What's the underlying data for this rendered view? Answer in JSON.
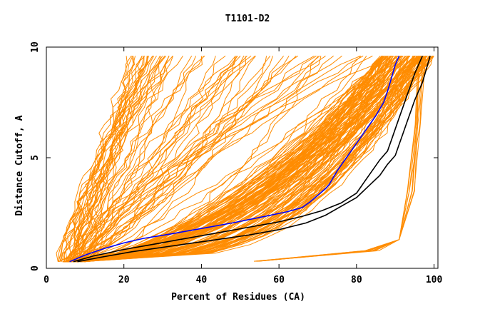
{
  "chart_data": {
    "type": "line",
    "title": "T1101-D2",
    "xlabel": "Percent of Residues (CA)",
    "ylabel": "Distance Cutoff, A",
    "xlim": [
      0,
      101
    ],
    "ylim": [
      0,
      10
    ],
    "x_ticks": [
      0,
      20,
      40,
      60,
      80,
      100
    ],
    "y_ticks": [
      0,
      5,
      10
    ],
    "grid": false,
    "legend": "none",
    "colors": {
      "models": "#ff8c00",
      "highlight": "#0000ff",
      "reference": "#000000",
      "axes": "#000000"
    },
    "highlighted_series": [
      {
        "color": "#0000ff",
        "points": [
          [
            6,
            0.3
          ],
          [
            10,
            0.6
          ],
          [
            15,
            0.9
          ],
          [
            20,
            1.15
          ],
          [
            25,
            1.35
          ],
          [
            32,
            1.55
          ],
          [
            40,
            1.8
          ],
          [
            48,
            2.05
          ],
          [
            55,
            2.3
          ],
          [
            62,
            2.55
          ],
          [
            66,
            2.75
          ],
          [
            68,
            3.0
          ],
          [
            70,
            3.3
          ],
          [
            72,
            3.6
          ],
          [
            73,
            3.8
          ],
          [
            74,
            4.1
          ],
          [
            75,
            4.4
          ],
          [
            77,
            4.9
          ],
          [
            79,
            5.4
          ],
          [
            81,
            5.9
          ],
          [
            83,
            6.4
          ],
          [
            85,
            6.9
          ],
          [
            87,
            7.5
          ],
          [
            88,
            8.0
          ],
          [
            89,
            8.6
          ],
          [
            90,
            9.2
          ],
          [
            91,
            9.6
          ]
        ]
      },
      {
        "color": "#000000",
        "points": [
          [
            7,
            0.3
          ],
          [
            12,
            0.55
          ],
          [
            20,
            0.85
          ],
          [
            28,
            1.1
          ],
          [
            36,
            1.35
          ],
          [
            44,
            1.6
          ],
          [
            52,
            1.85
          ],
          [
            60,
            2.1
          ],
          [
            66,
            2.35
          ],
          [
            71,
            2.6
          ],
          [
            76,
            2.95
          ],
          [
            80,
            3.4
          ],
          [
            82,
            3.9
          ],
          [
            84,
            4.4
          ],
          [
            86,
            4.9
          ],
          [
            88,
            5.3
          ],
          [
            89,
            5.8
          ],
          [
            90,
            6.3
          ],
          [
            91,
            6.8
          ],
          [
            92,
            7.3
          ],
          [
            93,
            7.8
          ],
          [
            94,
            8.3
          ],
          [
            95,
            8.8
          ],
          [
            96,
            9.2
          ],
          [
            97,
            9.6
          ]
        ]
      },
      {
        "color": "#000000",
        "points": [
          [
            8,
            0.3
          ],
          [
            14,
            0.5
          ],
          [
            22,
            0.75
          ],
          [
            32,
            1.0
          ],
          [
            42,
            1.25
          ],
          [
            52,
            1.5
          ],
          [
            60,
            1.75
          ],
          [
            67,
            2.05
          ],
          [
            72,
            2.4
          ],
          [
            76,
            2.8
          ],
          [
            80,
            3.2
          ],
          [
            83,
            3.7
          ],
          [
            86,
            4.2
          ],
          [
            88,
            4.7
          ],
          [
            90,
            5.1
          ],
          [
            91,
            5.6
          ],
          [
            92,
            6.1
          ],
          [
            93,
            6.6
          ],
          [
            94,
            7.1
          ],
          [
            95,
            7.6
          ],
          [
            96,
            8.0
          ],
          [
            97,
            8.4
          ],
          [
            98,
            9.0
          ],
          [
            99,
            9.6
          ]
        ]
      }
    ]
  }
}
